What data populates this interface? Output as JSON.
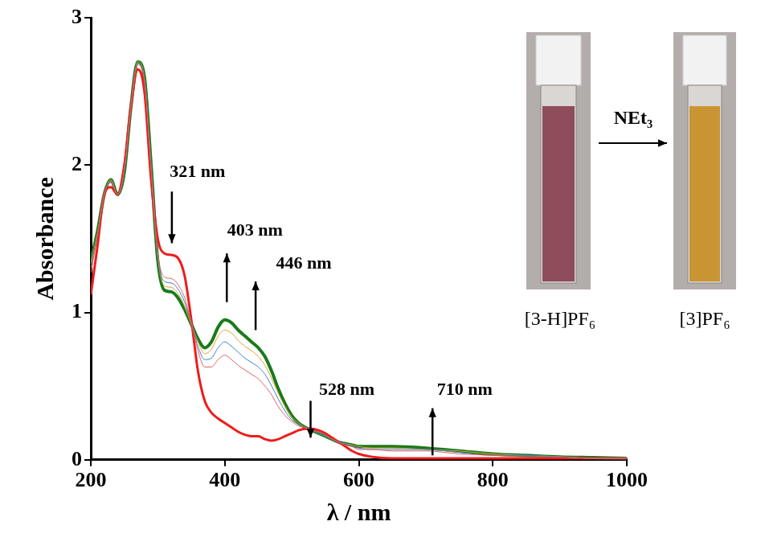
{
  "chart_data": {
    "type": "line",
    "x_label": "λ / nm",
    "y_label": "Absorbance",
    "x": [
      200,
      210,
      220,
      230,
      240,
      250,
      260,
      270,
      280,
      290,
      300,
      310,
      320,
      330,
      340,
      350,
      360,
      370,
      380,
      390,
      400,
      410,
      420,
      430,
      440,
      450,
      460,
      470,
      480,
      490,
      500,
      510,
      520,
      530,
      540,
      550,
      560,
      570,
      580,
      590,
      600,
      620,
      650,
      700,
      750,
      800,
      850,
      900,
      950,
      1000
    ],
    "series": [
      {
        "color": "#e06060",
        "values": [
          1.27,
          1.52,
          1.8,
          1.88,
          1.8,
          1.97,
          2.4,
          2.68,
          2.57,
          1.97,
          1.4,
          1.24,
          1.23,
          1.19,
          1.1,
          0.93,
          0.74,
          0.63,
          0.63,
          0.68,
          0.71,
          0.68,
          0.64,
          0.61,
          0.58,
          0.55,
          0.5,
          0.44,
          0.36,
          0.3,
          0.26,
          0.23,
          0.22,
          0.2,
          0.19,
          0.17,
          0.14,
          0.12,
          0.1,
          0.09,
          0.07,
          0.07,
          0.06,
          0.06,
          0.04,
          0.03,
          0.02,
          0.02,
          0.01,
          0.01
        ]
      },
      {
        "color": "#3a7fd0",
        "values": [
          1.3,
          1.53,
          1.8,
          1.89,
          1.8,
          1.96,
          2.4,
          2.69,
          2.58,
          1.98,
          1.38,
          1.21,
          1.2,
          1.16,
          1.07,
          0.93,
          0.77,
          0.68,
          0.69,
          0.76,
          0.8,
          0.77,
          0.73,
          0.69,
          0.66,
          0.63,
          0.58,
          0.5,
          0.41,
          0.33,
          0.27,
          0.24,
          0.22,
          0.2,
          0.18,
          0.16,
          0.14,
          0.12,
          0.11,
          0.09,
          0.08,
          0.07,
          0.07,
          0.07,
          0.05,
          0.03,
          0.03,
          0.02,
          0.01,
          0.01
        ]
      },
      {
        "color": "#e0a030",
        "values": [
          1.33,
          1.54,
          1.8,
          1.9,
          1.8,
          1.96,
          2.4,
          2.7,
          2.59,
          1.99,
          1.37,
          1.18,
          1.17,
          1.13,
          1.04,
          0.92,
          0.8,
          0.72,
          0.75,
          0.84,
          0.88,
          0.86,
          0.81,
          0.77,
          0.74,
          0.7,
          0.64,
          0.55,
          0.45,
          0.36,
          0.29,
          0.25,
          0.22,
          0.2,
          0.18,
          0.16,
          0.14,
          0.12,
          0.11,
          0.1,
          0.09,
          0.08,
          0.08,
          0.07,
          0.06,
          0.04,
          0.03,
          0.02,
          0.01,
          0.01
        ]
      },
      {
        "color": "#ee1c1c",
        "values": [
          1.12,
          1.45,
          1.8,
          1.85,
          1.8,
          2.0,
          2.4,
          2.65,
          2.5,
          1.9,
          1.5,
          1.4,
          1.39,
          1.37,
          1.25,
          0.95,
          0.6,
          0.4,
          0.32,
          0.28,
          0.25,
          0.22,
          0.19,
          0.17,
          0.16,
          0.16,
          0.14,
          0.13,
          0.14,
          0.16,
          0.18,
          0.2,
          0.21,
          0.21,
          0.2,
          0.18,
          0.15,
          0.12,
          0.09,
          0.06,
          0.04,
          0.02,
          0.01,
          0.01,
          0.01,
          0.01,
          0.01,
          0.01,
          0.01,
          0.01
        ]
      },
      {
        "color": "#1a7a1a",
        "values": [
          1.35,
          1.55,
          1.8,
          1.9,
          1.8,
          1.95,
          2.4,
          2.7,
          2.6,
          2.0,
          1.35,
          1.15,
          1.14,
          1.1,
          1.02,
          0.92,
          0.82,
          0.76,
          0.8,
          0.9,
          0.95,
          0.93,
          0.88,
          0.84,
          0.8,
          0.76,
          0.7,
          0.6,
          0.48,
          0.38,
          0.3,
          0.25,
          0.22,
          0.2,
          0.18,
          0.16,
          0.14,
          0.12,
          0.11,
          0.1,
          0.09,
          0.09,
          0.09,
          0.08,
          0.06,
          0.04,
          0.03,
          0.02,
          0.015,
          0.01
        ]
      }
    ],
    "xlim": [
      200,
      1000
    ],
    "ylim": [
      0,
      3
    ],
    "xticks": [
      200,
      400,
      600,
      800,
      1000
    ],
    "yticks": [
      0,
      1,
      2,
      3
    ],
    "grid": false,
    "annotations": [
      {
        "text": "321 nm",
        "x": 321
      },
      {
        "text": "403 nm",
        "x": 403
      },
      {
        "text": "446 nm",
        "x": 446
      },
      {
        "text": "528 nm",
        "x": 528
      },
      {
        "text": "710 nm",
        "x": 710
      }
    ],
    "inset": {
      "reagent": "NEt₃",
      "before": "[3-H]PF₆",
      "after": "[3]PF₆"
    }
  }
}
